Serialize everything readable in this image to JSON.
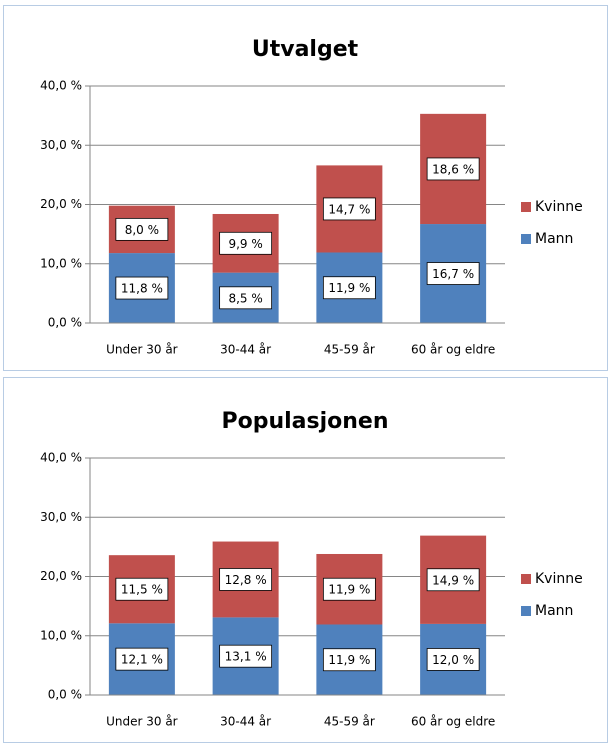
{
  "chart_data": [
    {
      "type": "stacked-bar",
      "title": "Utvalget",
      "categories": [
        "Under 30 år",
        "30-44 år",
        "45-59 år",
        "60 år og eldre"
      ],
      "series": [
        {
          "name": "Mann",
          "color": "#4f81bd",
          "values": [
            11.8,
            8.5,
            11.9,
            16.7
          ],
          "value_labels": [
            "11,8 %",
            "8,5 %",
            "11,9 %",
            "16,7 %"
          ]
        },
        {
          "name": "Kvinne",
          "color": "#c0504d",
          "values": [
            8.0,
            9.9,
            14.7,
            18.6
          ],
          "value_labels": [
            "8,0 %",
            "9,9 %",
            "14,7 %",
            "18,6 %"
          ]
        }
      ],
      "ylim": [
        0,
        40
      ],
      "yticks": [
        {
          "value": 0,
          "label": "0,0 %"
        },
        {
          "value": 10,
          "label": "10,0 %"
        },
        {
          "value": 20,
          "label": "20,0 %"
        },
        {
          "value": 30,
          "label": "30,0 %"
        },
        {
          "value": 40,
          "label": "40,0 %"
        }
      ],
      "grid": true,
      "legend": "right"
    },
    {
      "type": "stacked-bar",
      "title": "Populasjonen",
      "categories": [
        "Under 30 år",
        "30-44 år",
        "45-59 år",
        "60 år og eldre"
      ],
      "series": [
        {
          "name": "Mann",
          "color": "#4f81bd",
          "values": [
            12.1,
            13.1,
            11.9,
            12.0
          ],
          "value_labels": [
            "12,1 %",
            "13,1 %",
            "11,9 %",
            "12,0 %"
          ]
        },
        {
          "name": "Kvinne",
          "color": "#c0504d",
          "values": [
            11.5,
            12.8,
            11.9,
            14.9
          ],
          "value_labels": [
            "11,5 %",
            "12,8 %",
            "11,9 %",
            "14,9 %"
          ]
        }
      ],
      "ylim": [
        0,
        40
      ],
      "yticks": [
        {
          "value": 0,
          "label": "0,0 %"
        },
        {
          "value": 10,
          "label": "10,0 %"
        },
        {
          "value": 20,
          "label": "20,0 %"
        },
        {
          "value": 30,
          "label": "30,0 %"
        },
        {
          "value": 40,
          "label": "40,0 %"
        }
      ],
      "grid": true,
      "legend": "right"
    }
  ]
}
